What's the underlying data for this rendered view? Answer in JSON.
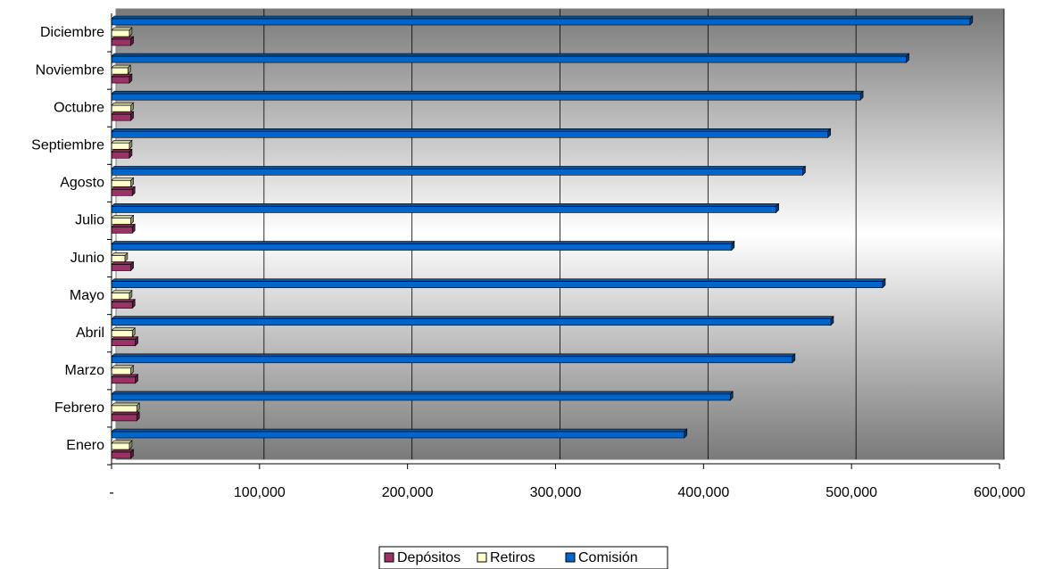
{
  "chart_data": {
    "type": "bar",
    "orientation": "horizontal",
    "categories": [
      "Enero",
      "Febrero",
      "Marzo",
      "Abril",
      "Mayo",
      "Junio",
      "Julio",
      "Agosto",
      "Septiembre",
      "Octubre",
      "Noviembre",
      "Diciembre"
    ],
    "series": [
      {
        "name": "Depósitos",
        "color": "#993366",
        "values": [
          13000,
          17000,
          16000,
          16000,
          14000,
          13000,
          14000,
          14000,
          12000,
          13000,
          12000,
          13000
        ]
      },
      {
        "name": "Retiros",
        "color": "#ffffcc",
        "values": [
          12000,
          17000,
          13000,
          14000,
          12000,
          9000,
          13000,
          13000,
          12000,
          13000,
          11000,
          12000
        ]
      },
      {
        "name": "Comisión",
        "color": "#0066cc",
        "values": [
          387000,
          418000,
          460000,
          486000,
          521000,
          419000,
          449000,
          467000,
          484000,
          506000,
          537000,
          580000
        ]
      }
    ],
    "xlim": [
      0,
      600000
    ],
    "xticks": [
      {
        "value": 0,
        "label": "-"
      },
      {
        "value": 100000,
        "label": "100,000"
      },
      {
        "value": 200000,
        "label": "200,000"
      },
      {
        "value": 300000,
        "label": "300,000"
      },
      {
        "value": 400000,
        "label": "400,000"
      },
      {
        "value": 500000,
        "label": "500,000"
      },
      {
        "value": 600000,
        "label": "600,000"
      }
    ],
    "grid": true,
    "legend": "bottom"
  }
}
